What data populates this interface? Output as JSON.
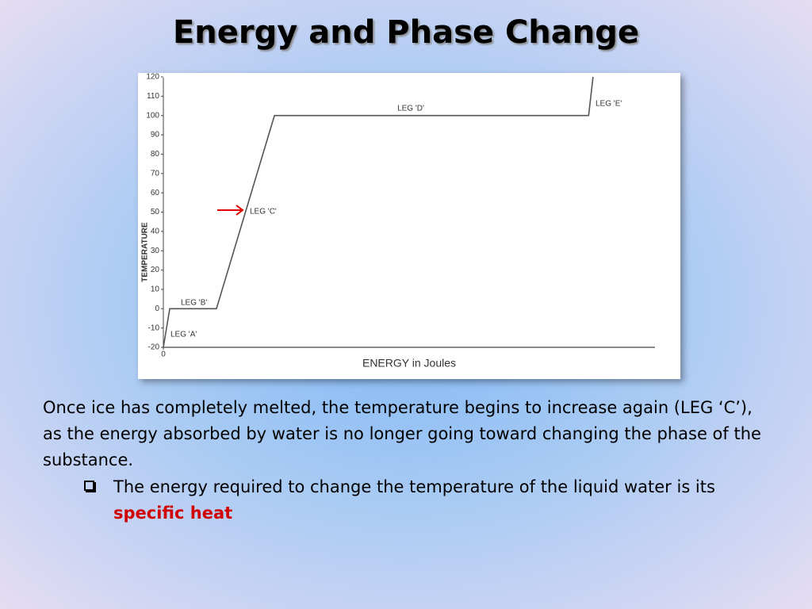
{
  "slide": {
    "title": "Energy and Phase Change",
    "paragraph": "Once ice has completely melted, the temperature begins to increase again (LEG ‘C’), as the energy absorbed by water is no longer going toward changing the phase of the substance.",
    "bullet": {
      "text": "The energy required to change the temperature of the liquid water is its",
      "highlight": "specific heat"
    }
  },
  "chart_data": {
    "type": "line",
    "xlabel": "ENERGY in Joules",
    "ylabel": "TEMPERATURE",
    "x": [
      0,
      1.3,
      10.8,
      22.6,
      86.5,
      87.4
    ],
    "values": [
      -20,
      0,
      0,
      100,
      100,
      120
    ],
    "color": "#555555",
    "xlim": [
      0,
      100
    ],
    "xticks": [
      0
    ],
    "ylim": [
      -20,
      120
    ],
    "yticks": [
      -20,
      -10,
      0,
      10,
      20,
      30,
      40,
      50,
      60,
      70,
      80,
      90,
      100,
      110,
      120
    ],
    "annotations": [
      "LEG 'A'",
      "LEG 'B'",
      "LEG 'C'",
      "LEG 'D'",
      "LEG 'E'"
    ]
  }
}
